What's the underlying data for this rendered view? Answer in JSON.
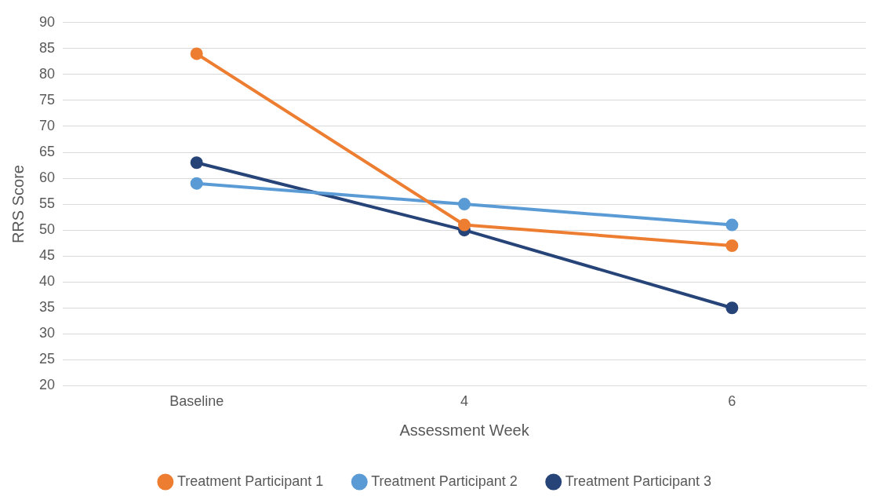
{
  "chart_data": {
    "type": "line",
    "xlabel": "Assessment Week",
    "ylabel": "RRS Score",
    "categories": [
      "Baseline",
      "4",
      "6"
    ],
    "series": [
      {
        "name": "Treatment Participant 1",
        "color": "#ed7d31",
        "values": [
          84,
          51,
          47
        ]
      },
      {
        "name": "Treatment Participant 2",
        "color": "#5b9bd5",
        "values": [
          59,
          55,
          51
        ]
      },
      {
        "name": "Treatment Participant 3",
        "color": "#264478",
        "values": [
          63,
          50,
          35
        ]
      }
    ],
    "ylim": [
      20,
      90
    ],
    "yticks": [
      20,
      25,
      30,
      35,
      40,
      45,
      50,
      55,
      60,
      65,
      70,
      75,
      80,
      85,
      90
    ],
    "grid": "y",
    "legend": "bottom",
    "marker": "circle",
    "line_style": "solid"
  }
}
